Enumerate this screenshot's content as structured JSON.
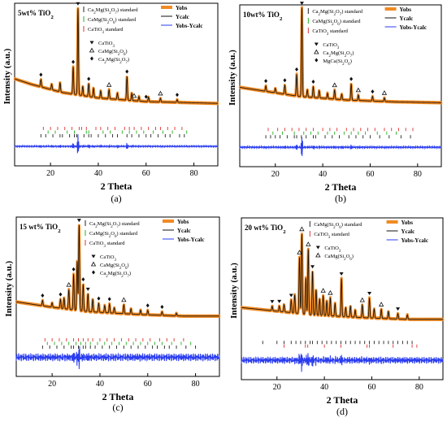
{
  "chart_data": [
    {
      "type": "line",
      "panel_caption": "(a)",
      "composition_label": "5wt% TiO2",
      "xlabel": "2 Theta",
      "ylabel": "Intensity (a.u.)",
      "xlim": [
        5,
        90
      ],
      "x_ticks": [
        20,
        40,
        60,
        80
      ],
      "legend_lines": [
        "Yobs",
        "Ycalc",
        "Yobs-Ycalc"
      ],
      "legend_standards": [
        "Ca2Mg(Si2O7) standard",
        "CaMg(Si2O6) standard",
        "CaTiO3 standard"
      ],
      "legend_markers": [
        "CaTiO3",
        "CaMg(Si2O6)",
        "Ca2Mg(Si2O7)"
      ],
      "background": [
        [
          5,
          0.42
        ],
        [
          12,
          0.36
        ],
        [
          25,
          0.27
        ],
        [
          40,
          0.21
        ],
        [
          60,
          0.17
        ],
        [
          90,
          0.15
        ]
      ],
      "peaks": [
        [
          16,
          0.08
        ],
        [
          20.5,
          0.06
        ],
        [
          24,
          0.1
        ],
        [
          29.5,
          0.3
        ],
        [
          31.5,
          0.95
        ],
        [
          33.5,
          0.1
        ],
        [
          36,
          0.14
        ],
        [
          38,
          0.1
        ],
        [
          41,
          0.08
        ],
        [
          44.5,
          0.1
        ],
        [
          48,
          0.07
        ],
        [
          52,
          0.26
        ],
        [
          54,
          0.08
        ],
        [
          57,
          0.05
        ],
        [
          61,
          0.05
        ],
        [
          66,
          0.04
        ],
        [
          73,
          0.03
        ]
      ],
      "markers": [
        [
          31.5,
          "heart"
        ],
        [
          16,
          "diamond"
        ],
        [
          29.5,
          "diamond"
        ],
        [
          36,
          "diamond"
        ],
        [
          52,
          "diamond"
        ],
        [
          44.5,
          "triangle"
        ],
        [
          55,
          "triangle"
        ],
        [
          60,
          "diamond"
        ],
        [
          66,
          "triangle"
        ],
        [
          73,
          "diamond"
        ]
      ],
      "ticks": [
        {
          "color": "#e03030",
          "positions": [
            17,
            20,
            23,
            26,
            29,
            32,
            33,
            35,
            39,
            41,
            44,
            47,
            51,
            53,
            55,
            58,
            61,
            64,
            66,
            69,
            72,
            75
          ]
        },
        {
          "color": "#20b020",
          "positions": [
            19,
            22,
            27,
            30,
            35,
            36,
            42,
            45,
            50,
            53,
            56,
            59,
            63,
            67,
            71,
            77
          ]
        },
        {
          "color": "#222222",
          "positions": [
            16,
            18,
            21,
            24,
            25,
            28,
            30,
            31,
            34,
            36,
            37,
            40,
            43,
            46,
            48,
            52,
            54,
            57,
            60,
            62,
            65,
            68,
            70,
            74,
            76
          ]
        }
      ],
      "diff_amplitude": 0.01
    },
    {
      "type": "line",
      "panel_caption": "(b)",
      "composition_label": "10wt% TiO2",
      "xlabel": "2 Theta",
      "ylabel": "Intensity (a.u.)",
      "xlim": [
        5,
        90
      ],
      "x_ticks": [
        20,
        40,
        60,
        80
      ],
      "legend_lines": [
        "Yobs",
        "Ycalc",
        "Yobs-Ycalc"
      ],
      "legend_standards": [
        "Ca2Mg(Si2O7) standard",
        "CaMg(Si2O6) standard",
        "CaTiO3 standard"
      ],
      "legend_markers": [
        "CaTiO3",
        "Ca2Mg(Si2O7)",
        "MgCa(Si2O6)"
      ],
      "background": [
        [
          5,
          0.34
        ],
        [
          15,
          0.3
        ],
        [
          30,
          0.24
        ],
        [
          50,
          0.2
        ],
        [
          70,
          0.18
        ],
        [
          90,
          0.17
        ]
      ],
      "peaks": [
        [
          16,
          0.06
        ],
        [
          20,
          0.05
        ],
        [
          24,
          0.1
        ],
        [
          29,
          0.24
        ],
        [
          31.2,
          0.98
        ],
        [
          33.5,
          0.08
        ],
        [
          36,
          0.12
        ],
        [
          38.5,
          0.08
        ],
        [
          42,
          0.06
        ],
        [
          45,
          0.1
        ],
        [
          48,
          0.06
        ],
        [
          52,
          0.18
        ],
        [
          55,
          0.06
        ],
        [
          61,
          0.05
        ],
        [
          66,
          0.04
        ]
      ],
      "markers": [
        [
          31.2,
          "heart"
        ],
        [
          16,
          "diamond"
        ],
        [
          24,
          "diamond"
        ],
        [
          29,
          "diamond"
        ],
        [
          36,
          "diamond"
        ],
        [
          45,
          "triangle"
        ],
        [
          52,
          "diamond"
        ],
        [
          55,
          "triangle"
        ],
        [
          61,
          "diamond"
        ],
        [
          66,
          "triangle"
        ]
      ],
      "ticks": [
        {
          "color": "#e03030",
          "positions": [
            17,
            21,
            24,
            27,
            30,
            33,
            36,
            40,
            43,
            46,
            50,
            53,
            56,
            59,
            62,
            66,
            69,
            72,
            75,
            78
          ]
        },
        {
          "color": "#20b020",
          "positions": [
            19,
            23,
            28,
            32,
            35,
            38,
            42,
            45,
            49,
            52,
            55,
            58,
            63,
            67,
            71
          ]
        },
        {
          "color": "#222222",
          "positions": [
            16,
            18,
            20,
            22,
            25,
            28,
            29,
            31,
            33,
            36,
            37,
            41,
            44,
            47,
            51,
            54,
            57,
            60,
            64,
            68,
            73,
            77
          ]
        }
      ],
      "diff_amplitude": 0.012
    },
    {
      "type": "line",
      "panel_caption": "(c)",
      "composition_label": "15 wt% TiO2",
      "xlabel": "2 Theta",
      "ylabel": "Intensity (a.u.)",
      "xlim": [
        5,
        90
      ],
      "x_ticks": [
        20,
        40,
        60,
        80
      ],
      "legend_lines": [
        "Yobs",
        "Ycalc",
        "Yobs-Ycalc"
      ],
      "legend_standards": [
        "Ca2Mg(Si2O7) standard",
        "CaMg(Si2O6) standard",
        "CaTiO3 standard"
      ],
      "legend_markers": [
        "CaTiO3",
        "CaMg(Si2O6)",
        "Ca2Mg(Si2O7)"
      ],
      "background": [
        [
          5,
          0.3
        ],
        [
          20,
          0.24
        ],
        [
          35,
          0.19
        ],
        [
          55,
          0.16
        ],
        [
          75,
          0.14
        ],
        [
          90,
          0.14
        ]
      ],
      "peaks": [
        [
          16,
          0.06
        ],
        [
          20,
          0.05
        ],
        [
          23.5,
          0.1
        ],
        [
          25,
          0.12
        ],
        [
          27,
          0.22
        ],
        [
          29,
          0.4
        ],
        [
          30.5,
          0.55
        ],
        [
          31.3,
          0.96
        ],
        [
          33,
          0.3
        ],
        [
          35,
          0.2
        ],
        [
          37,
          0.14
        ],
        [
          39.5,
          0.1
        ],
        [
          42,
          0.08
        ],
        [
          44,
          0.1
        ],
        [
          46,
          0.06
        ],
        [
          50,
          0.1
        ],
        [
          53,
          0.06
        ],
        [
          57,
          0.05
        ],
        [
          60,
          0.05
        ],
        [
          66,
          0.04
        ],
        [
          72,
          0.03
        ]
      ],
      "markers": [
        [
          31.3,
          "heart"
        ],
        [
          16,
          "diamond"
        ],
        [
          23.5,
          "diamond"
        ],
        [
          27,
          "triangle"
        ],
        [
          29,
          "diamond"
        ],
        [
          33,
          "diamond"
        ],
        [
          35,
          "heart"
        ],
        [
          39.5,
          "diamond"
        ],
        [
          44,
          "diamond"
        ],
        [
          50,
          "triangle"
        ],
        [
          60,
          "diamond"
        ],
        [
          66,
          "diamond"
        ]
      ],
      "ticks": [
        {
          "color": "#e03030",
          "positions": [
            17,
            20,
            23,
            26,
            29,
            31,
            33,
            35,
            37,
            40,
            43,
            46,
            49,
            52,
            55,
            58,
            61,
            65,
            68,
            71,
            75
          ]
        },
        {
          "color": "#20b020",
          "positions": [
            18,
            21,
            24,
            27,
            30,
            32,
            34,
            36,
            39,
            42,
            45,
            48,
            51,
            54,
            57,
            60,
            63,
            66,
            70,
            74,
            78
          ]
        },
        {
          "color": "#222222",
          "positions": [
            16,
            19,
            22,
            25,
            28,
            29,
            31,
            33,
            34,
            36,
            38,
            41,
            44,
            47,
            50,
            53,
            56,
            59,
            62,
            64,
            67,
            69,
            72,
            76,
            80
          ]
        }
      ],
      "diff_amplitude": 0.04
    },
    {
      "type": "line",
      "panel_caption": "(d)",
      "composition_label": "20 wt% TiO2",
      "xlabel": "2 Theta",
      "ylabel": "Intensity (a.u.)",
      "xlim": [
        5,
        90
      ],
      "x_ticks": [
        20,
        40,
        60,
        80
      ],
      "legend_lines": [
        "Yobs",
        "Ycalc",
        "Yobs-Ycalc"
      ],
      "legend_standards": [
        "CaMg(Si2O6) standard",
        "CaTiO3 standard"
      ],
      "legend_markers": [
        "CaTiO3",
        "CaMg(Si2O6)"
      ],
      "background": [
        [
          5,
          0.26
        ],
        [
          20,
          0.22
        ],
        [
          35,
          0.18
        ],
        [
          55,
          0.15
        ],
        [
          75,
          0.13
        ],
        [
          90,
          0.13
        ]
      ],
      "peaks": [
        [
          18,
          0.05
        ],
        [
          21,
          0.06
        ],
        [
          23,
          0.08
        ],
        [
          26,
          0.14
        ],
        [
          27.5,
          0.2
        ],
        [
          29.5,
          0.62
        ],
        [
          30.5,
          0.88
        ],
        [
          32.2,
          0.4
        ],
        [
          33.2,
          0.72
        ],
        [
          35,
          0.48
        ],
        [
          36.5,
          0.28
        ],
        [
          38,
          0.18
        ],
        [
          39.5,
          0.22
        ],
        [
          41,
          0.16
        ],
        [
          42.5,
          0.2
        ],
        [
          44.5,
          0.14
        ],
        [
          47.2,
          0.42
        ],
        [
          49,
          0.1
        ],
        [
          51,
          0.12
        ],
        [
          53,
          0.08
        ],
        [
          56,
          0.14
        ],
        [
          59,
          0.22
        ],
        [
          61,
          0.1
        ],
        [
          64,
          0.1
        ],
        [
          67,
          0.08
        ],
        [
          71,
          0.06
        ],
        [
          75,
          0.05
        ]
      ],
      "markers": [
        [
          30.5,
          "triangle"
        ],
        [
          33.2,
          "triangle"
        ],
        [
          29.5,
          "triangle"
        ],
        [
          35,
          "heart"
        ],
        [
          26,
          "heart"
        ],
        [
          21,
          "heart"
        ],
        [
          18,
          "heart"
        ],
        [
          39.5,
          "triangle"
        ],
        [
          42.5,
          "triangle"
        ],
        [
          47.2,
          "heart"
        ],
        [
          56,
          "triangle"
        ],
        [
          59,
          "heart"
        ],
        [
          64,
          "triangle"
        ],
        [
          71,
          "heart"
        ]
      ],
      "ticks": [
        {
          "color": "#222222",
          "positions": [
            14,
            20,
            23,
            26,
            28,
            30,
            32,
            34,
            35,
            37,
            39,
            41,
            43,
            45,
            47,
            49,
            51,
            53,
            55,
            57,
            59,
            61,
            63,
            65,
            67,
            69,
            71,
            73,
            75,
            77
          ]
        },
        {
          "color": "#e03030",
          "positions": [
            23,
            32,
            33,
            40,
            47,
            58,
            59,
            69,
            77,
            79
          ]
        }
      ],
      "diff_amplitude": 0.035
    }
  ]
}
